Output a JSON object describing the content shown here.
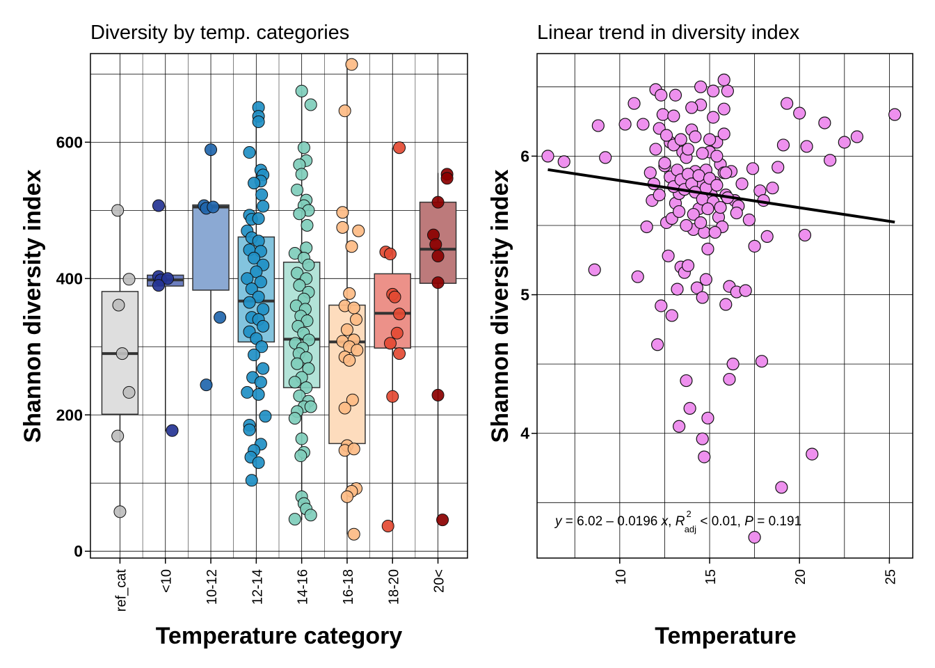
{
  "chart_data": [
    {
      "type": "box",
      "title": "Diversity by temp. categories",
      "xlabel": "Temperature category",
      "ylabel": "Shannon diversity index",
      "ylim": [
        -10,
        730
      ],
      "yticks": [
        0,
        200,
        400,
        600
      ],
      "grid": true,
      "categories": [
        "ref_cat",
        "<10",
        "10-12",
        "12-14",
        "14-16",
        "16-18",
        "18-20",
        "20<"
      ],
      "box_fills": [
        "#dedede",
        "#6c7ec0",
        "#8ba9d3",
        "#83c4de",
        "#b3e3d8",
        "#fddcbd",
        "#ec9189",
        "#bd7a7b"
      ],
      "point_colors": [
        "#bdbdbd",
        "#253494",
        "#2166ac",
        "#1f8fc4",
        "#7fcdbb",
        "#fdbb84",
        "#e34a33",
        "#8b0000"
      ],
      "boxes": [
        {
          "min": 58,
          "q1": 201,
          "median": 290,
          "q3": 381,
          "max": 500
        },
        {
          "min": 176,
          "q1": 389,
          "median": 398,
          "q3": 405,
          "max": 507
        },
        {
          "min": 244,
          "q1": 383,
          "median": 505,
          "q3": 508,
          "max": 589
        },
        {
          "min": 104,
          "q1": 307,
          "median": 367,
          "q3": 461,
          "max": 651
        },
        {
          "min": 46,
          "q1": 240,
          "median": 311,
          "q3": 424,
          "max": 675
        },
        {
          "min": 25,
          "q1": 158,
          "median": 307,
          "q3": 361,
          "max": 714
        },
        {
          "min": 37,
          "q1": 298,
          "median": 349,
          "q3": 407,
          "max": 592
        },
        {
          "min": 46,
          "q1": 393,
          "median": 443,
          "q3": 512,
          "max": 555
        }
      ],
      "points": [
        [
          [
            -0.05,
            500
          ],
          [
            0.2,
            399
          ],
          [
            -0.03,
            361
          ],
          [
            0.05,
            290
          ],
          [
            0.2,
            233
          ],
          [
            -0.05,
            169
          ],
          [
            0,
            58
          ]
        ],
        [
          [
            -0.15,
            507
          ],
          [
            -0.15,
            403
          ],
          [
            -0.1,
            398
          ],
          [
            0.05,
            400
          ],
          [
            -0.15,
            390
          ],
          [
            0.15,
            177
          ]
        ],
        [
          [
            0,
            589
          ],
          [
            -0.15,
            507
          ],
          [
            -0.1,
            503
          ],
          [
            0.05,
            505
          ],
          [
            0.2,
            343
          ],
          [
            -0.1,
            244
          ]
        ],
        [
          [
            0.05,
            651
          ],
          [
            0.05,
            638
          ],
          [
            0.05,
            630
          ],
          [
            -0.15,
            585
          ],
          [
            0.1,
            559
          ],
          [
            0.15,
            552
          ],
          [
            0.1,
            543
          ],
          [
            -0.05,
            540
          ],
          [
            0.12,
            523
          ],
          [
            0.15,
            506
          ],
          [
            -0.15,
            493
          ],
          [
            -0.1,
            487
          ],
          [
            0.05,
            488
          ],
          [
            -0.2,
            470
          ],
          [
            -0.1,
            460
          ],
          [
            0.05,
            455
          ],
          [
            -0.15,
            442
          ],
          [
            0.1,
            440
          ],
          [
            -0.05,
            430
          ],
          [
            0.15,
            420
          ],
          [
            0,
            410
          ],
          [
            -0.2,
            400
          ],
          [
            0.1,
            395
          ],
          [
            -0.1,
            385
          ],
          [
            0.05,
            373
          ],
          [
            -0.15,
            365
          ],
          [
            0.15,
            355
          ],
          [
            -0.1,
            343
          ],
          [
            0.05,
            340
          ],
          [
            0.15,
            330
          ],
          [
            -0.15,
            322
          ],
          [
            0,
            312
          ],
          [
            0.12,
            300
          ],
          [
            -0.05,
            288
          ],
          [
            0.15,
            268
          ],
          [
            -0.08,
            255
          ],
          [
            0.1,
            248
          ],
          [
            -0.2,
            233
          ],
          [
            0.05,
            230
          ],
          [
            0.2,
            198
          ],
          [
            -0.15,
            185
          ],
          [
            -0.15,
            178
          ],
          [
            0.1,
            157
          ],
          [
            -0.05,
            148
          ],
          [
            -0.12,
            138
          ],
          [
            0.05,
            130
          ],
          [
            -0.1,
            104
          ]
        ],
        [
          [
            0,
            675
          ],
          [
            0.2,
            655
          ],
          [
            0.05,
            592
          ],
          [
            0.1,
            573
          ],
          [
            -0.05,
            567
          ],
          [
            0,
            553
          ],
          [
            -0.1,
            530
          ],
          [
            0.1,
            515
          ],
          [
            0.05,
            507
          ],
          [
            0.15,
            500
          ],
          [
            -0.05,
            495
          ],
          [
            0.12,
            478
          ],
          [
            0.1,
            445
          ],
          [
            -0.15,
            437
          ],
          [
            0.05,
            430
          ],
          [
            0.15,
            420
          ],
          [
            -0.1,
            408
          ],
          [
            0.1,
            400
          ],
          [
            -0.05,
            390
          ],
          [
            0.15,
            380
          ],
          [
            0.05,
            370
          ],
          [
            -0.12,
            360
          ],
          [
            0.08,
            355
          ],
          [
            -0.02,
            345
          ],
          [
            0.12,
            338
          ],
          [
            -0.08,
            330
          ],
          [
            0.04,
            320
          ],
          [
            0.16,
            310
          ],
          [
            -0.14,
            305
          ],
          [
            0.02,
            298
          ],
          [
            -0.06,
            290
          ],
          [
            0.1,
            284
          ],
          [
            -0.1,
            275
          ],
          [
            0.15,
            268
          ],
          [
            0,
            255
          ],
          [
            -0.15,
            248
          ],
          [
            0.1,
            240
          ],
          [
            -0.05,
            228
          ],
          [
            0.15,
            220
          ],
          [
            0.05,
            212
          ],
          [
            -0.1,
            205
          ],
          [
            0.2,
            212
          ],
          [
            -0.15,
            195
          ],
          [
            0,
            165
          ],
          [
            0.05,
            145
          ],
          [
            -0.02,
            140
          ],
          [
            0,
            80
          ],
          [
            0.05,
            70
          ],
          [
            0.1,
            62
          ],
          [
            0.2,
            53
          ],
          [
            -0.15,
            47
          ]
        ],
        [
          [
            0.1,
            714
          ],
          [
            -0.05,
            646
          ],
          [
            -0.1,
            497
          ],
          [
            0.25,
            470
          ],
          [
            -0.1,
            475
          ],
          [
            0.1,
            447
          ],
          [
            0.05,
            378
          ],
          [
            -0.05,
            360
          ],
          [
            0.15,
            357
          ],
          [
            0.2,
            340
          ],
          [
            0,
            325
          ],
          [
            -0.1,
            308
          ],
          [
            0.15,
            310
          ],
          [
            0.05,
            300
          ],
          [
            0.22,
            295
          ],
          [
            -0.05,
            285
          ],
          [
            0.05,
            280
          ],
          [
            0.12,
            222
          ],
          [
            -0.05,
            210
          ],
          [
            0,
            155
          ],
          [
            -0.05,
            148
          ],
          [
            0.15,
            150
          ],
          [
            0.2,
            92
          ],
          [
            0.1,
            88
          ],
          [
            0.0,
            80
          ],
          [
            0.15,
            25
          ]
        ],
        [
          [
            0.15,
            592
          ],
          [
            -0.15,
            439
          ],
          [
            -0.05,
            436
          ],
          [
            0,
            377
          ],
          [
            0.05,
            373
          ],
          [
            0.15,
            348
          ],
          [
            0.1,
            320
          ],
          [
            -0.05,
            305
          ],
          [
            0.15,
            290
          ],
          [
            0,
            227
          ],
          [
            -0.1,
            37
          ]
        ],
        [
          [
            0.2,
            553
          ],
          [
            0.2,
            547
          ],
          [
            0,
            512
          ],
          [
            -0.1,
            464
          ],
          [
            -0.05,
            450
          ],
          [
            0,
            433
          ],
          [
            0,
            394
          ],
          [
            0,
            229
          ],
          [
            0.1,
            46
          ]
        ]
      ]
    },
    {
      "type": "scatter",
      "title": "Linear trend in diversity index",
      "xlabel": "Temperature",
      "ylabel": "Shannon diversity index",
      "xlim": [
        5.4,
        26.3
      ],
      "ylim": [
        3.1,
        6.74
      ],
      "xticks": [
        10,
        15,
        20,
        25
      ],
      "yticks": [
        4,
        5,
        6
      ],
      "grid": true,
      "point_color": "#ee90ee",
      "fit": {
        "intercept": 6.02,
        "slope": -0.0196,
        "x_range": [
          6,
          25.3
        ]
      },
      "annotation": {
        "y": "y",
        "eq": " = 6.02 – 0.0196 ",
        "x": "x",
        "sep1": ", ",
        "R": "R",
        "sup": "2",
        "sub": "adj",
        "rest": " < 0.01, ",
        "P": "P",
        "pval": " = 0.191"
      },
      "points": [
        [
          6.0,
          6.0
        ],
        [
          6.9,
          5.96
        ],
        [
          8.6,
          5.18
        ],
        [
          8.8,
          6.22
        ],
        [
          9.2,
          5.99
        ],
        [
          10.3,
          6.23
        ],
        [
          10.8,
          6.38
        ],
        [
          11.0,
          5.13
        ],
        [
          11.3,
          6.23
        ],
        [
          11.5,
          5.49
        ],
        [
          11.7,
          5.88
        ],
        [
          11.8,
          5.68
        ],
        [
          11.9,
          5.8
        ],
        [
          12.0,
          6.48
        ],
        [
          12.0,
          6.05
        ],
        [
          12.1,
          4.64
        ],
        [
          12.2,
          6.2
        ],
        [
          12.2,
          5.72
        ],
        [
          12.3,
          6.44
        ],
        [
          12.4,
          6.3
        ],
        [
          12.5,
          5.93
        ],
        [
          12.6,
          5.52
        ],
        [
          12.7,
          5.28
        ],
        [
          12.8,
          6.1
        ],
        [
          12.9,
          4.85
        ],
        [
          13.0,
          6.29
        ],
        [
          13.1,
          5.66
        ],
        [
          13.2,
          5.04
        ],
        [
          13.3,
          5.73
        ],
        [
          13.4,
          5.2
        ],
        [
          13.5,
          6.03
        ],
        [
          13.6,
          5.16
        ],
        [
          13.7,
          5.99
        ],
        [
          13.8,
          5.21
        ],
        [
          14.0,
          6.19
        ],
        [
          14.1,
          5.47
        ],
        [
          14.2,
          5.89
        ],
        [
          14.3,
          5.05
        ],
        [
          14.4,
          5.62
        ],
        [
          14.5,
          6.37
        ],
        [
          14.6,
          5.79
        ],
        [
          14.7,
          5.45
        ],
        [
          14.8,
          5.9
        ],
        [
          14.9,
          5.33
        ],
        [
          15.0,
          6.03
        ],
        [
          15.1,
          5.72
        ],
        [
          15.2,
          6.28
        ],
        [
          15.3,
          5.81
        ],
        [
          15.4,
          6.1
        ],
        [
          15.5,
          5.56
        ],
        [
          15.6,
          5.94
        ],
        [
          15.7,
          5.49
        ],
        [
          15.8,
          6.34
        ],
        [
          15.9,
          5.72
        ],
        [
          16.0,
          6.47
        ],
        [
          16.1,
          5.06
        ],
        [
          16.2,
          5.89
        ],
        [
          16.3,
          4.5
        ],
        [
          16.4,
          5.68
        ],
        [
          16.5,
          5.02
        ],
        [
          16.6,
          5.64
        ],
        [
          16.8,
          5.8
        ],
        [
          17.0,
          5.03
        ],
        [
          17.2,
          5.54
        ],
        [
          17.4,
          5.91
        ],
        [
          17.5,
          5.35
        ],
        [
          17.8,
          5.75
        ],
        [
          17.9,
          4.52
        ],
        [
          18.0,
          5.68
        ],
        [
          18.2,
          5.42
        ],
        [
          18.5,
          5.77
        ],
        [
          18.8,
          5.92
        ],
        [
          19.0,
          3.61
        ],
        [
          19.1,
          6.08
        ],
        [
          19.3,
          6.38
        ],
        [
          20.0,
          6.31
        ],
        [
          20.3,
          5.43
        ],
        [
          20.4,
          6.07
        ],
        [
          20.7,
          3.85
        ],
        [
          21.4,
          6.24
        ],
        [
          21.7,
          5.97
        ],
        [
          22.5,
          6.1
        ],
        [
          23.2,
          6.14
        ],
        [
          25.3,
          6.3
        ],
        [
          12.5,
          5.95
        ],
        [
          12.8,
          5.85
        ],
        [
          13.0,
          5.78
        ],
        [
          13.2,
          5.9
        ],
        [
          13.4,
          5.83
        ],
        [
          13.6,
          5.76
        ],
        [
          13.8,
          5.87
        ],
        [
          14.0,
          5.8
        ],
        [
          14.2,
          5.74
        ],
        [
          14.4,
          5.86
        ],
        [
          14.6,
          5.69
        ],
        [
          14.8,
          5.77
        ],
        [
          15.0,
          5.84
        ],
        [
          15.2,
          5.67
        ],
        [
          15.4,
          5.79
        ],
        [
          15.6,
          5.63
        ],
        [
          15.8,
          5.88
        ],
        [
          16.0,
          5.7
        ],
        [
          12.6,
          6.15
        ],
        [
          13.0,
          6.08
        ],
        [
          13.4,
          6.12
        ],
        [
          13.8,
          6.05
        ],
        [
          14.2,
          6.14
        ],
        [
          14.6,
          6.02
        ],
        [
          15.0,
          6.12
        ],
        [
          15.4,
          6.0
        ],
        [
          15.8,
          6.16
        ],
        [
          12.9,
          5.55
        ],
        [
          13.3,
          5.6
        ],
        [
          13.7,
          5.5
        ],
        [
          14.1,
          5.58
        ],
        [
          14.5,
          5.52
        ],
        [
          14.9,
          5.62
        ],
        [
          15.3,
          5.45
        ],
        [
          13.1,
          6.44
        ],
        [
          14.5,
          6.5
        ],
        [
          15.8,
          6.55
        ],
        [
          15.2,
          6.47
        ],
        [
          14.0,
          6.35
        ],
        [
          12.3,
          4.92
        ],
        [
          13.3,
          4.05
        ],
        [
          13.7,
          4.38
        ],
        [
          13.9,
          4.18
        ],
        [
          14.6,
          3.96
        ],
        [
          14.7,
          3.83
        ],
        [
          14.9,
          4.11
        ],
        [
          14.8,
          5.11
        ],
        [
          14.6,
          4.98
        ],
        [
          15.9,
          4.93
        ],
        [
          16.1,
          4.39
        ],
        [
          17.5,
          3.25
        ],
        [
          15.9,
          5.88
        ],
        [
          16.5,
          5.59
        ]
      ]
    }
  ]
}
